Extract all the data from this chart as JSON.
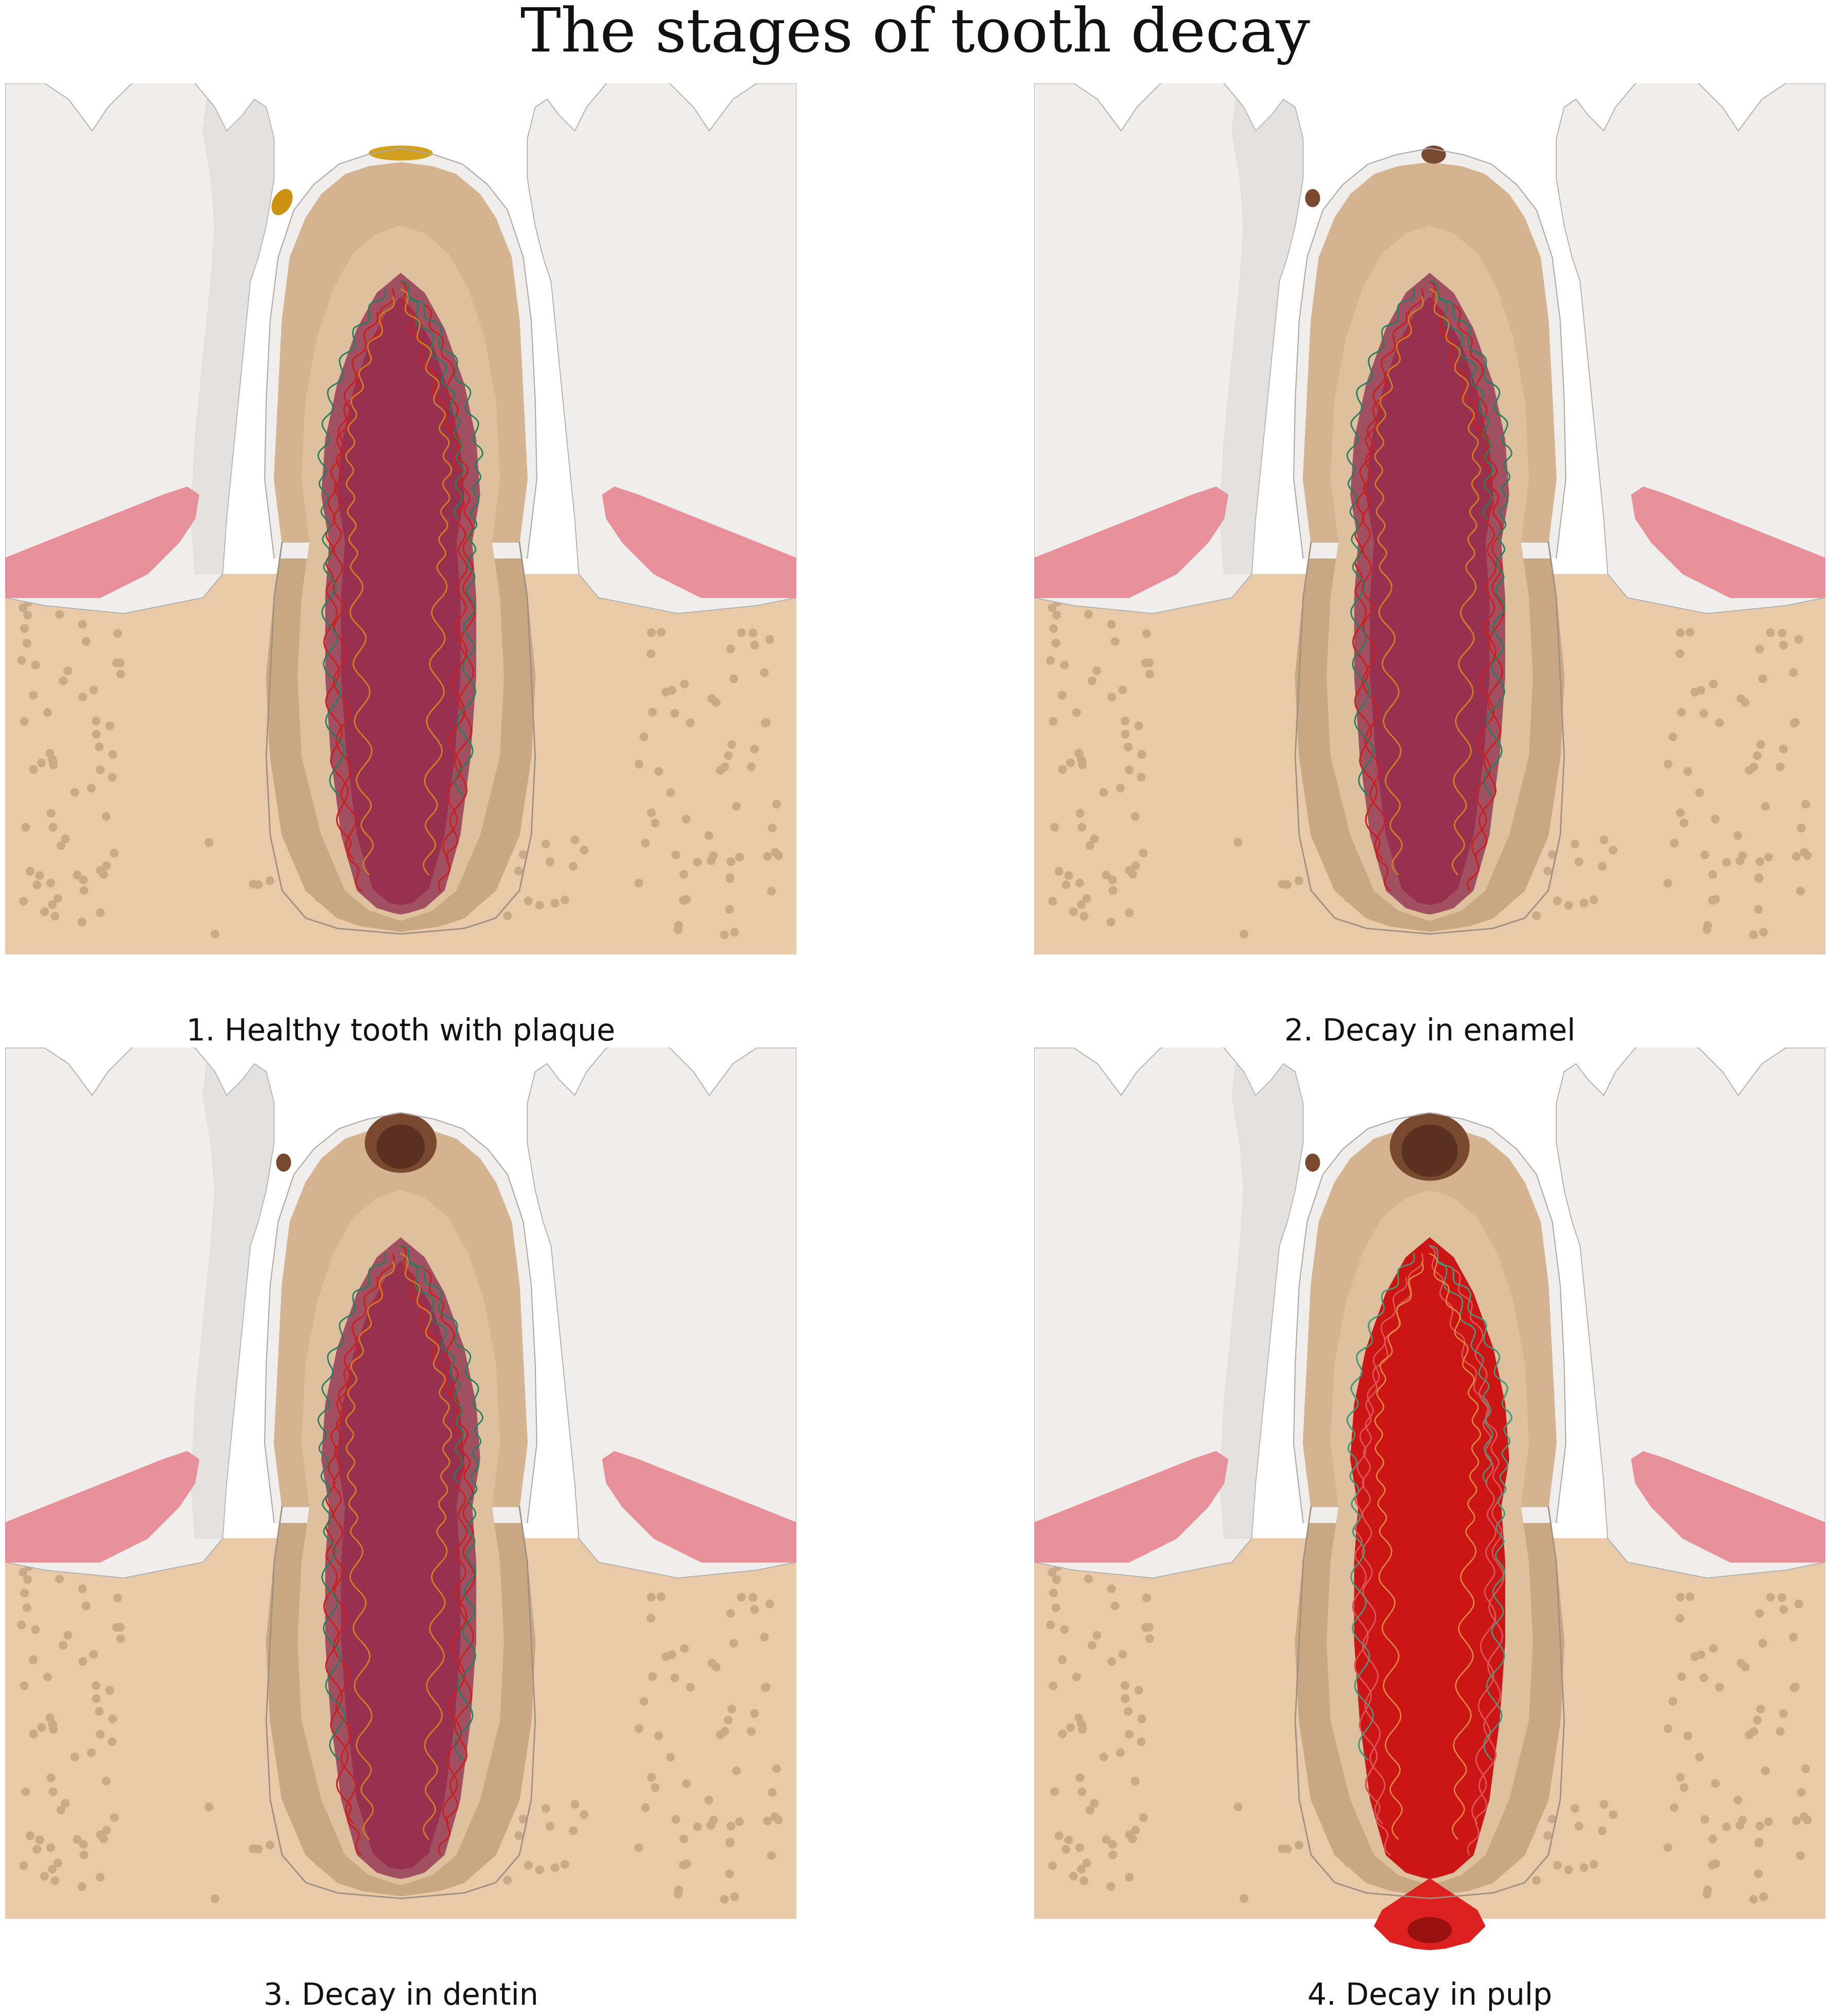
{
  "title": "The stages of tooth decay",
  "title_fontsize": 85,
  "title_font": "DejaVu Serif",
  "background_color": "#ffffff",
  "labels": [
    "1. Healthy tooth with plaque",
    "2. Decay in enamel",
    "3. Decay in dentin",
    "4. Decay in pulp"
  ],
  "label_fontsize": 42,
  "colors": {
    "enamel": "#f0eeec",
    "enamel_grad": "#e8e6e4",
    "enamel_outline": "#aaaaaa",
    "dentin_outer": "#c8a882",
    "dentin_mid": "#d4b490",
    "dentin_inner": "#dfc09e",
    "pulp_outer": "#a05060",
    "pulp_mid": "#b06070",
    "pulp_inner": "#983050",
    "pulp_light": "#c07080",
    "gum_pink": "#e8909a",
    "gum_light": "#f0a0aa",
    "bone": "#e8c9a8",
    "bone_light": "#f0d4b8",
    "bone_outline": "#c4a882",
    "bone_dot": "#c8aa88",
    "root_outer": "#c09878",
    "plaque_yellow": "#cc9010",
    "plaque_orange": "#d4a020",
    "decay_brown": "#7a4a30",
    "decay_dark": "#5a3020",
    "infection_red": "#cc1515",
    "nerve_red1": "#cc2020",
    "nerve_red2": "#aa1010",
    "nerve_red3": "#dd3030",
    "nerve_green1": "#208060",
    "nerve_green2": "#30907a",
    "nerve_orange1": "#d08020",
    "nerve_orange2": "#c07010",
    "tooth_shadow": "#c8c8c8",
    "white": "#ffffff",
    "abscess_red": "#dd2020",
    "abscess_dark": "#991010"
  }
}
